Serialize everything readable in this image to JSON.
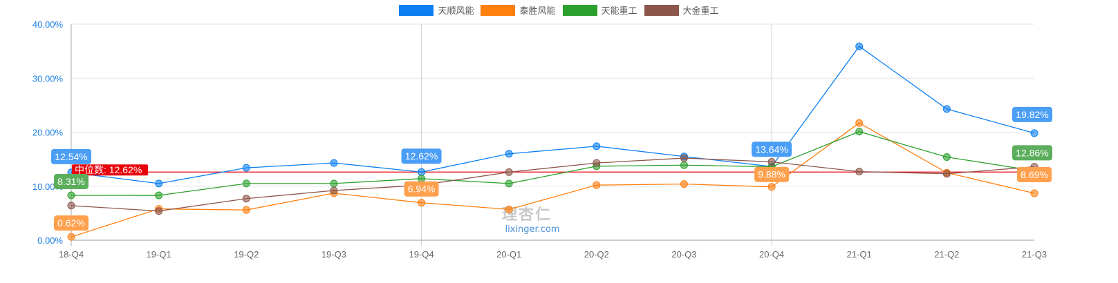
{
  "legend": [
    {
      "name": "天顺风能",
      "color": "#0c7ff2"
    },
    {
      "name": "泰胜风能",
      "color": "#ff7f0e"
    },
    {
      "name": "天能重工",
      "color": "#2ca02c"
    },
    {
      "name": "大金重工",
      "color": "#8c564b"
    }
  ],
  "watermark": {
    "logo": "理杏仁",
    "site": "lixinger.com"
  },
  "median_label": "中位数: 12.62%",
  "chart_data": {
    "type": "line",
    "title": "",
    "xlabel": "",
    "ylabel": "",
    "categories": [
      "18-Q4",
      "19-Q1",
      "19-Q2",
      "19-Q3",
      "19-Q4",
      "20-Q1",
      "20-Q2",
      "20-Q3",
      "20-Q4",
      "21-Q1",
      "21-Q2",
      "21-Q3"
    ],
    "y_ticks": [
      "0.00%",
      "10.00%",
      "20.00%",
      "30.00%",
      "40.00%"
    ],
    "ylim": [
      0,
      40
    ],
    "legend_position": "top",
    "grid": true,
    "series": [
      {
        "name": "天顺风能",
        "color": "#0c7ff2",
        "values": [
          12.54,
          10.5,
          13.4,
          14.3,
          12.62,
          16.0,
          17.4,
          15.5,
          13.64,
          35.9,
          24.3,
          19.82
        ]
      },
      {
        "name": "泰胜风能",
        "color": "#ff7f0e",
        "values": [
          0.62,
          5.8,
          5.6,
          8.7,
          6.94,
          5.7,
          10.2,
          10.4,
          9.88,
          21.7,
          12.5,
          8.69
        ]
      },
      {
        "name": "天能重工",
        "color": "#2ca02c",
        "values": [
          8.31,
          8.3,
          10.5,
          10.5,
          11.4,
          10.5,
          13.7,
          13.9,
          13.6,
          20.1,
          15.4,
          12.86
        ]
      },
      {
        "name": "大金重工",
        "color": "#8c564b",
        "values": [
          6.4,
          5.4,
          7.7,
          9.2,
          10.2,
          12.6,
          14.3,
          15.2,
          14.5,
          12.7,
          12.3,
          13.6
        ]
      }
    ],
    "median_line": {
      "label": "中位数: 12.62%",
      "value": 12.62,
      "color": "#e8000b"
    },
    "annotations": [
      {
        "series": 0,
        "index": 0,
        "text": "12.54%"
      },
      {
        "series": 0,
        "index": 4,
        "text": "12.62%"
      },
      {
        "series": 0,
        "index": 8,
        "text": "13.64%"
      },
      {
        "series": 0,
        "index": 11,
        "text": "19.82%"
      },
      {
        "series": 1,
        "index": 0,
        "text": "0.62%"
      },
      {
        "series": 1,
        "index": 4,
        "text": "6.94%"
      },
      {
        "series": 1,
        "index": 8,
        "text": "9.88%"
      },
      {
        "series": 1,
        "index": 11,
        "text": "8.69%"
      },
      {
        "series": 2,
        "index": 0,
        "text": "8.31%"
      },
      {
        "series": 2,
        "index": 11,
        "text": "12.86%"
      }
    ]
  }
}
